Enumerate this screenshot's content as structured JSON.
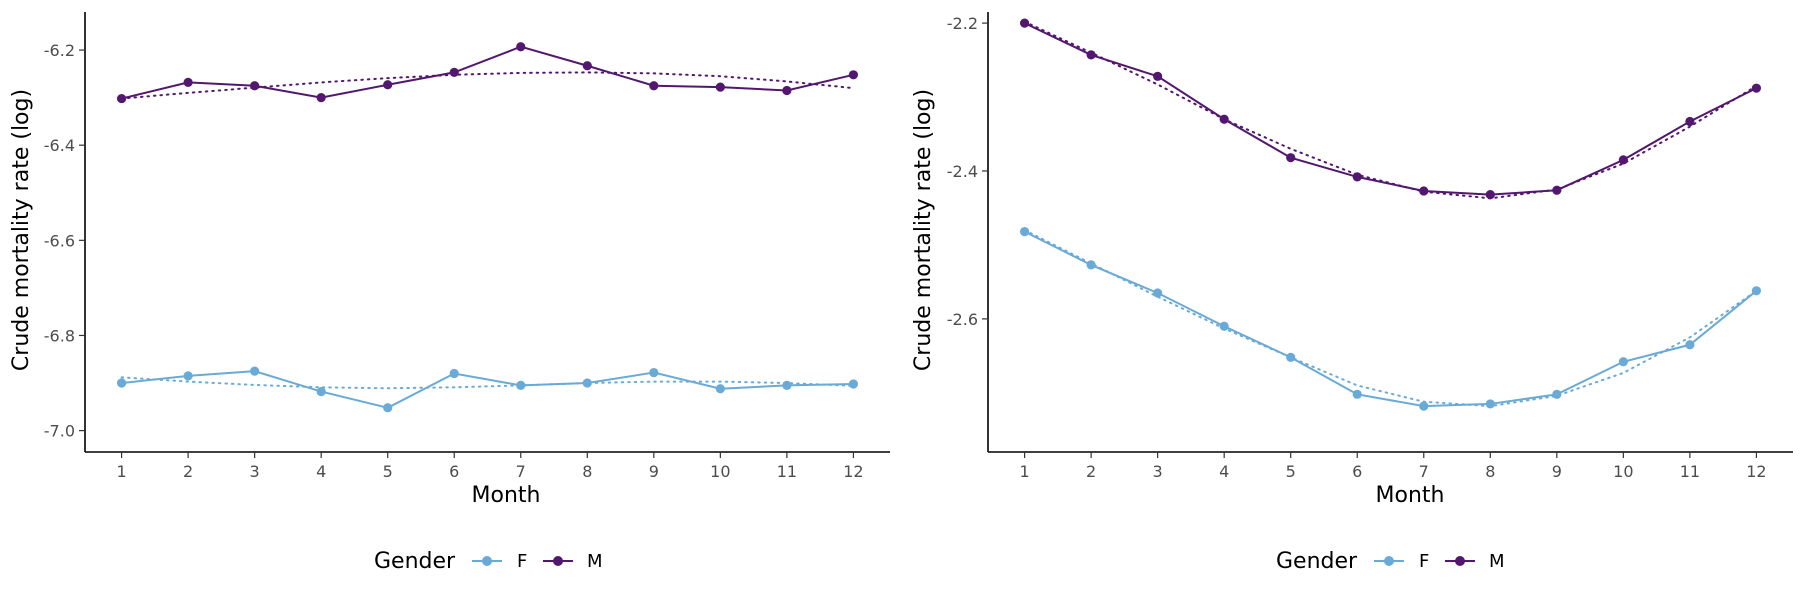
{
  "chart_data": [
    {
      "type": "line",
      "xlabel": "Month",
      "ylabel": "Crude mortality rate (log)",
      "x": [
        1,
        2,
        3,
        4,
        5,
        6,
        7,
        8,
        9,
        10,
        11,
        12
      ],
      "xlim": [
        0.45,
        12.55
      ],
      "ylim": [
        -7.045,
        -6.12
      ],
      "yticks": [
        -7.0,
        -6.8,
        -6.6,
        -6.4,
        -6.2
      ],
      "ytick_labels": [
        "-7.0",
        "-6.8",
        "-6.6",
        "-6.4",
        "-6.2"
      ],
      "grid": false,
      "legend": {
        "title": "Gender",
        "position": "bottom",
        "entries": [
          "F",
          "M"
        ]
      },
      "series": [
        {
          "name": "F",
          "color": "#6aaad6",
          "values": [
            -6.9,
            -6.885,
            -6.875,
            -6.918,
            -6.952,
            -6.88,
            -6.905,
            -6.9,
            -6.878,
            -6.912,
            -6.905,
            -6.902
          ],
          "trend": [
            -6.888,
            -6.897,
            -6.904,
            -6.909,
            -6.911,
            -6.909,
            -6.905,
            -6.9,
            -6.897,
            -6.897,
            -6.9,
            -6.906
          ]
        },
        {
          "name": "M",
          "color": "#52176e",
          "values": [
            -6.302,
            -6.268,
            -6.275,
            -6.3,
            -6.273,
            -6.247,
            -6.193,
            -6.233,
            -6.275,
            -6.278,
            -6.285,
            -6.252
          ],
          "trend": [
            -6.302,
            -6.29,
            -6.279,
            -6.268,
            -6.259,
            -6.252,
            -6.248,
            -6.247,
            -6.249,
            -6.255,
            -6.266,
            -6.28
          ]
        }
      ]
    },
    {
      "type": "line",
      "xlabel": "Month",
      "ylabel": "Crude mortality rate (log)",
      "x": [
        1,
        2,
        3,
        4,
        5,
        6,
        7,
        8,
        9,
        10,
        11,
        12
      ],
      "xlim": [
        0.45,
        12.55
      ],
      "ylim": [
        -2.78,
        -2.185
      ],
      "yticks": [
        -2.6,
        -2.4,
        -2.2
      ],
      "ytick_labels": [
        "-2.6",
        "-2.4",
        "-2.2"
      ],
      "grid": false,
      "legend": {
        "title": "Gender",
        "position": "bottom",
        "entries": [
          "F",
          "M"
        ]
      },
      "series": [
        {
          "name": "F",
          "color": "#6aaad6",
          "values": [
            -2.482,
            -2.527,
            -2.565,
            -2.61,
            -2.652,
            -2.702,
            -2.718,
            -2.715,
            -2.702,
            -2.658,
            -2.635,
            -2.562
          ],
          "trend": [
            -2.48,
            -2.525,
            -2.57,
            -2.613,
            -2.652,
            -2.69,
            -2.712,
            -2.718,
            -2.704,
            -2.673,
            -2.625,
            -2.562
          ]
        },
        {
          "name": "M",
          "color": "#52176e",
          "values": [
            -2.2,
            -2.243,
            -2.272,
            -2.33,
            -2.382,
            -2.408,
            -2.427,
            -2.432,
            -2.426,
            -2.385,
            -2.333,
            -2.288
          ],
          "trend": [
            -2.198,
            -2.24,
            -2.283,
            -2.33,
            -2.37,
            -2.405,
            -2.428,
            -2.437,
            -2.425,
            -2.39,
            -2.34,
            -2.285
          ]
        }
      ]
    }
  ]
}
